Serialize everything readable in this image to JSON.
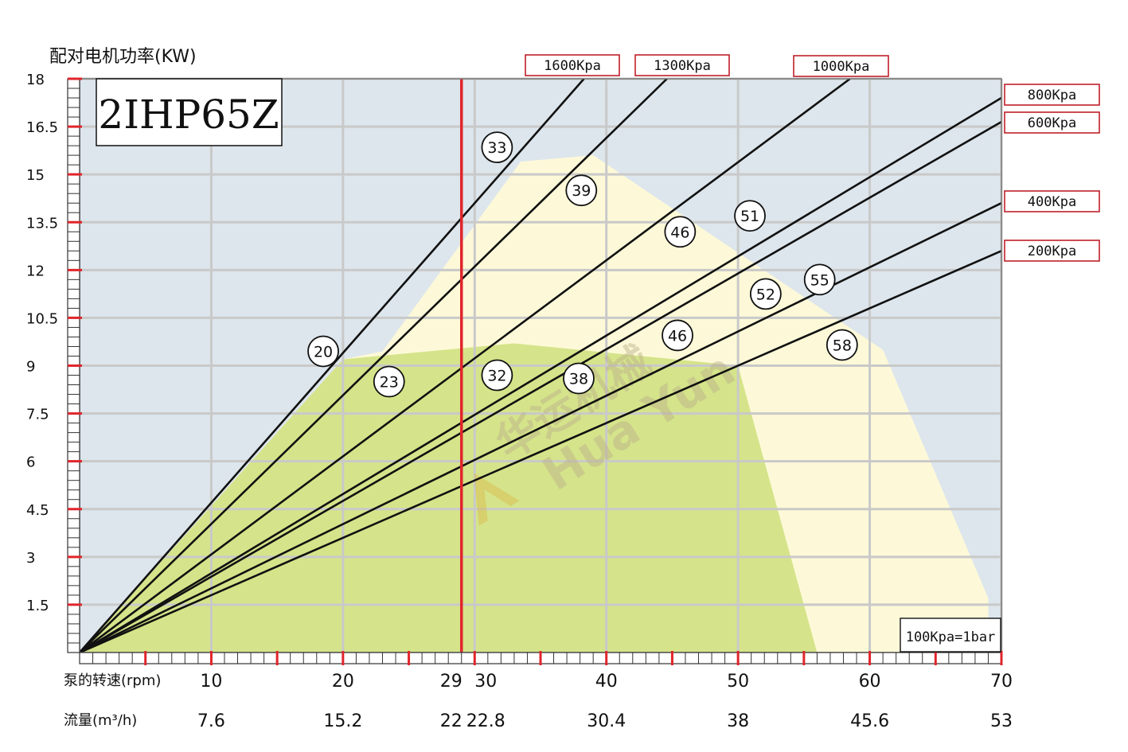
{
  "chart_data": {
    "type": "line",
    "ylabel": "配对电机功率(KW)",
    "model": "2IHP65Z",
    "watermark": [
      "华运机械",
      "Hua Yun"
    ],
    "note": "100Kpa=1bar",
    "ylim": [
      0,
      18
    ],
    "xlim": [
      0,
      70
    ],
    "y_ticks": [
      "1.5",
      "3",
      "4.5",
      "6",
      "7.5",
      "9",
      "10.5",
      "12",
      "13.5",
      "15",
      "16.5",
      "18"
    ],
    "x_rows": [
      {
        "label": "泵的转速(rpm)",
        "ticks": [
          {
            "x": 10,
            "text": "10"
          },
          {
            "x": 20,
            "text": "20"
          },
          {
            "x": 29,
            "text": "29"
          },
          {
            "x": 30,
            "text": "30"
          },
          {
            "x": 40,
            "text": "40"
          },
          {
            "x": 50,
            "text": "50"
          },
          {
            "x": 60,
            "text": "60"
          },
          {
            "x": 70,
            "text": "70"
          }
        ]
      },
      {
        "label": "流量(m³/h)",
        "ticks": [
          {
            "x": 10,
            "text": "7.6"
          },
          {
            "x": 20,
            "text": "15.2"
          },
          {
            "x": 29,
            "text": "22"
          },
          {
            "x": 30,
            "text": "22.8"
          },
          {
            "x": 40,
            "text": "30.4"
          },
          {
            "x": 50,
            "text": "38"
          },
          {
            "x": 60,
            "text": "45.6"
          },
          {
            "x": 70,
            "text": "53"
          }
        ]
      }
    ],
    "marker_line": {
      "x": 29,
      "color": "#e0252b"
    },
    "series": [
      {
        "name": "1600Kpa",
        "values": [
          [
            0,
            0
          ],
          [
            38.3,
            18
          ]
        ]
      },
      {
        "name": "1300Kpa",
        "values": [
          [
            0,
            0
          ],
          [
            44.6,
            18
          ]
        ]
      },
      {
        "name": "1000Kpa",
        "values": [
          [
            0,
            0
          ],
          [
            58.5,
            18
          ]
        ]
      },
      {
        "name": "800Kpa",
        "values": [
          [
            0,
            0
          ],
          [
            70,
            17.4
          ]
        ]
      },
      {
        "name": "600Kpa",
        "values": [
          [
            0,
            0
          ],
          [
            70,
            16.65
          ]
        ]
      },
      {
        "name": "400Kpa",
        "values": [
          [
            0,
            0
          ],
          [
            70,
            14.1
          ]
        ]
      },
      {
        "name": "200Kpa",
        "values": [
          [
            0,
            0
          ],
          [
            70,
            12.6
          ]
        ]
      }
    ],
    "efficiency_regions": [
      {
        "label": "green",
        "color": "#d5e48a",
        "polygon": [
          [
            0,
            0
          ],
          [
            20,
            9.2
          ],
          [
            33,
            9.7
          ],
          [
            50,
            9.0
          ],
          [
            56,
            0
          ]
        ]
      },
      {
        "label": "cream",
        "color": "#fdf9d8",
        "polygon": [
          [
            0,
            0
          ],
          [
            20,
            9.2
          ],
          [
            23,
            9.45
          ],
          [
            33.5,
            15.4
          ],
          [
            39,
            15.6
          ],
          [
            57,
            10.6
          ],
          [
            61,
            9.5
          ],
          [
            69,
            1.7
          ],
          [
            69,
            0
          ]
        ]
      }
    ],
    "efficiency_labels": [
      {
        "text": "20",
        "x": 18.5,
        "y": 9.45
      },
      {
        "text": "23",
        "x": 23.5,
        "y": 8.5
      },
      {
        "text": "33",
        "x": 31.7,
        "y": 15.85
      },
      {
        "text": "32",
        "x": 31.7,
        "y": 8.7
      },
      {
        "text": "39",
        "x": 38.1,
        "y": 14.5
      },
      {
        "text": "38",
        "x": 37.9,
        "y": 8.6
      },
      {
        "text": "46",
        "x": 45.6,
        "y": 13.2
      },
      {
        "text": "46",
        "x": 45.4,
        "y": 9.95
      },
      {
        "text": "51",
        "x": 50.9,
        "y": 13.7
      },
      {
        "text": "52",
        "x": 52.1,
        "y": 11.25
      },
      {
        "text": "55",
        "x": 56.2,
        "y": 11.7
      },
      {
        "text": "58",
        "x": 57.9,
        "y": 9.65
      }
    ],
    "colors": {
      "background": "#dde6ec",
      "grid": "#c9c9c9",
      "curve": "#111111",
      "axis_tick": "#e0252b",
      "legend_border": "#c0202a"
    }
  }
}
